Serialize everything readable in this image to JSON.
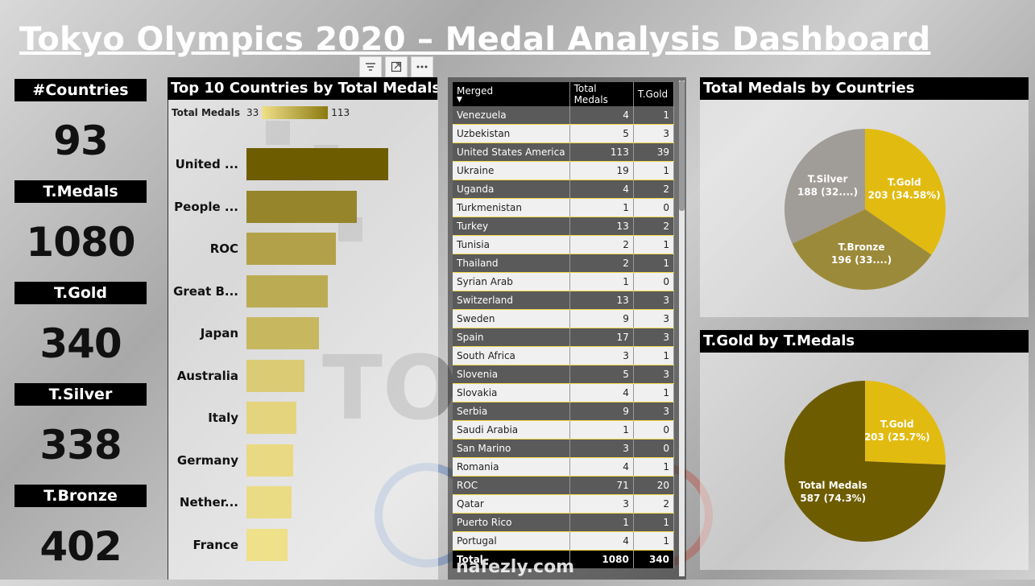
{
  "page": {
    "title": "Tokyo Olympics 2020 – Medal Analysis Dashboard"
  },
  "toolbar": {
    "icons": [
      "filter-icon",
      "focus-mode-icon",
      "more-options-icon"
    ]
  },
  "kpis": [
    {
      "label": "#Countries",
      "value": "93"
    },
    {
      "label": "T.Medals",
      "value": "1080"
    },
    {
      "label": "T.Gold",
      "value": "340"
    },
    {
      "label": "T.Silver",
      "value": "338"
    },
    {
      "label": "T.Bronze",
      "value": "402"
    }
  ],
  "chart_data": [
    {
      "type": "bar",
      "orientation": "horizontal",
      "title": "Top 10 Countries by Total Medals",
      "legend": {
        "label": "Total Medals",
        "min": "33",
        "max": "113"
      },
      "categories": [
        "United ...",
        "People ...",
        "ROC",
        "Great B...",
        "Japan",
        "Australia",
        "Italy",
        "Germany",
        "Nether...",
        "France"
      ],
      "values": [
        113,
        88,
        71,
        65,
        58,
        46,
        40,
        37,
        36,
        33
      ],
      "color_scale": [
        "#efe08a",
        "#6e5c00"
      ]
    },
    {
      "type": "pie",
      "title": "Total Medals by Countries",
      "slices": [
        {
          "name": "T.Gold",
          "value": 203,
          "label": "203 (34.58%)",
          "color": "#e2bb10"
        },
        {
          "name": "T.Bronze",
          "value": 196,
          "label": "196 (33....)",
          "color": "#9c8a3b"
        },
        {
          "name": "T.Silver",
          "value": 188,
          "label": "188 (32....)",
          "color": "#a09c98"
        }
      ]
    },
    {
      "type": "pie",
      "title": "T.Gold by T.Medals",
      "slices": [
        {
          "name": "T.Gold",
          "value": 203,
          "label": "203 (25.7%)",
          "color": "#e2bb10"
        },
        {
          "name": "Total Medals",
          "value": 587,
          "label": "587 (74.3%)",
          "color": "#6e5c00"
        }
      ]
    }
  ],
  "table": {
    "columns": [
      "Merged",
      "Total Medals",
      "T.Gold"
    ],
    "rows": [
      [
        "Venezuela",
        "4",
        "1"
      ],
      [
        "Uzbekistan",
        "5",
        "3"
      ],
      [
        "United States America",
        "113",
        "39"
      ],
      [
        "Ukraine",
        "19",
        "1"
      ],
      [
        "Uganda",
        "4",
        "2"
      ],
      [
        "Turkmenistan",
        "1",
        "0"
      ],
      [
        "Turkey",
        "13",
        "2"
      ],
      [
        "Tunisia",
        "2",
        "1"
      ],
      [
        "Thailand",
        "2",
        "1"
      ],
      [
        "Syrian Arab",
        "1",
        "0"
      ],
      [
        "Switzerland",
        "13",
        "3"
      ],
      [
        "Sweden",
        "9",
        "3"
      ],
      [
        "Spain",
        "17",
        "3"
      ],
      [
        "South Africa",
        "3",
        "1"
      ],
      [
        "Slovenia",
        "5",
        "3"
      ],
      [
        "Slovakia",
        "4",
        "1"
      ],
      [
        "Serbia",
        "9",
        "3"
      ],
      [
        "Saudi Arabia",
        "1",
        "0"
      ],
      [
        "San Marino",
        "3",
        "0"
      ],
      [
        "Romania",
        "4",
        "1"
      ],
      [
        "ROC",
        "71",
        "20"
      ],
      [
        "Qatar",
        "3",
        "2"
      ],
      [
        "Puerto Rico",
        "1",
        "1"
      ],
      [
        "Portugal",
        "4",
        "1"
      ]
    ],
    "total": [
      "Total",
      "1080",
      "340"
    ]
  },
  "watermark": "nafezly.com",
  "colors": {
    "header_bg": "#000000",
    "accent_gold": "#e2bb10",
    "dark_gold": "#6e5c00"
  }
}
